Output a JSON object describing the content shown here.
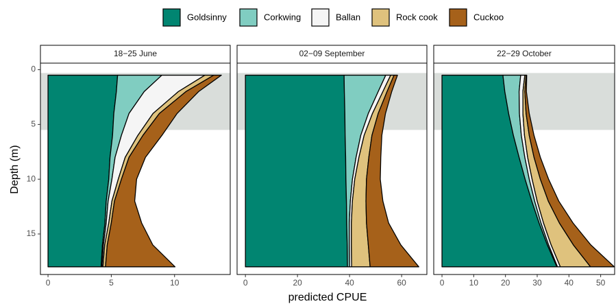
{
  "xlabel": "predicted CPUE",
  "ylabel": "Depth (m)",
  "shaded_depth": [
    0.3,
    5.5
  ],
  "chart_data": [
    {
      "type": "area",
      "title": "18−25 June",
      "y": [
        0.5,
        2,
        4,
        6,
        8,
        10,
        12,
        14,
        16,
        18
      ],
      "xlim": [
        -0.6,
        14.4
      ],
      "xticks": [
        0,
        5,
        10
      ],
      "ylim": [
        -0.6,
        18.7
      ],
      "yticks": [
        0,
        5,
        10,
        15
      ],
      "y_reversed": true,
      "series": [
        {
          "name": "Goldsinny",
          "color": "#018571",
          "values": [
            5.5,
            5.4,
            5.2,
            5.1,
            4.9,
            4.8,
            4.6,
            4.5,
            4.3,
            4.2
          ]
        },
        {
          "name": "Corkwing",
          "color": "#80cdc1",
          "values": [
            3.5,
            2.2,
            1.2,
            0.7,
            0.4,
            0.25,
            0.15,
            0.1,
            0.08,
            0.06
          ]
        },
        {
          "name": "Ballan",
          "color": "#f5f5f5",
          "values": [
            3.4,
            2.7,
            1.9,
            1.3,
            0.8,
            0.5,
            0.3,
            0.2,
            0.1,
            0.08
          ]
        },
        {
          "name": "Rock cook",
          "color": "#dfc27d",
          "values": [
            0.7,
            0.6,
            0.5,
            0.4,
            0.3,
            0.25,
            0.2,
            0.2,
            0.2,
            0.2
          ]
        },
        {
          "name": "Cuckoo",
          "color": "#a6611a",
          "values": [
            0.6,
            1.0,
            1.4,
            1.5,
            1.3,
            1.2,
            1.6,
            2.4,
            3.6,
            5.5
          ]
        }
      ]
    },
    {
      "type": "area",
      "title": "02−09 September",
      "y": [
        0.5,
        2,
        4,
        6,
        8,
        10,
        12,
        14,
        16,
        18
      ],
      "xlim": [
        -3.2,
        69.7
      ],
      "xticks": [
        0,
        20,
        40,
        60
      ],
      "series": [
        {
          "name": "Goldsinny",
          "color": "#018571",
          "values": [
            37.9,
            38,
            38.2,
            38.3,
            38.5,
            38.6,
            38.8,
            38.9,
            39.1,
            39.2
          ]
        },
        {
          "name": "Corkwing",
          "color": "#80cdc1",
          "values": [
            16,
            13,
            9,
            6,
            4,
            2.5,
            1.5,
            1,
            0.8,
            0.8
          ]
        },
        {
          "name": "Ballan",
          "color": "#f5f5f5",
          "values": [
            1.9,
            1.8,
            1.6,
            1.3,
            1.1,
            0.9,
            0.8,
            0.8,
            0.8,
            0.8
          ]
        },
        {
          "name": "Rock cook",
          "color": "#dfc27d",
          "values": [
            1.3,
            1.6,
            2.2,
            3,
            3.8,
            4.5,
            5.2,
            5.8,
            6.5,
            7.1
          ]
        },
        {
          "name": "Cuckoo",
          "color": "#a6611a",
          "values": [
            1.3,
            1.8,
            2.8,
            3.8,
            4.6,
            5.3,
            6.5,
            8.5,
            12.5,
            18.7
          ]
        }
      ]
    },
    {
      "type": "area",
      "title": "22−29 October",
      "y": [
        0.5,
        2,
        4,
        6,
        8,
        10,
        12,
        14,
        16,
        18
      ],
      "xlim": [
        -2.6,
        54.4
      ],
      "xticks": [
        0,
        10,
        20,
        30,
        40,
        50
      ],
      "series": [
        {
          "name": "Goldsinny",
          "color": "#018571",
          "values": [
            19.2,
            19.8,
            21,
            22.5,
            24.3,
            26.2,
            28.3,
            30.6,
            33.2,
            36.2
          ]
        },
        {
          "name": "Corkwing",
          "color": "#80cdc1",
          "values": [
            5.6,
            4.5,
            3.4,
            2.5,
            1.8,
            1.3,
            0.9,
            0.6,
            0.4,
            0.2
          ]
        },
        {
          "name": "Ballan",
          "color": "#f5f5f5",
          "values": [
            1.3,
            1.2,
            1.1,
            1,
            0.9,
            0.9,
            0.8,
            0.8,
            0.8,
            0.9
          ]
        },
        {
          "name": "Rock cook",
          "color": "#dfc27d",
          "values": [
            0.4,
            0.6,
            1,
            1.5,
            2,
            2.6,
            3.5,
            5,
            7,
            9.5
          ]
        },
        {
          "name": "Cuckoo",
          "color": "#a6611a",
          "values": [
            0.2,
            0.5,
            1,
            1.5,
            2,
            2.6,
            3.3,
            4.3,
            5.5,
            7.5
          ]
        }
      ]
    }
  ]
}
